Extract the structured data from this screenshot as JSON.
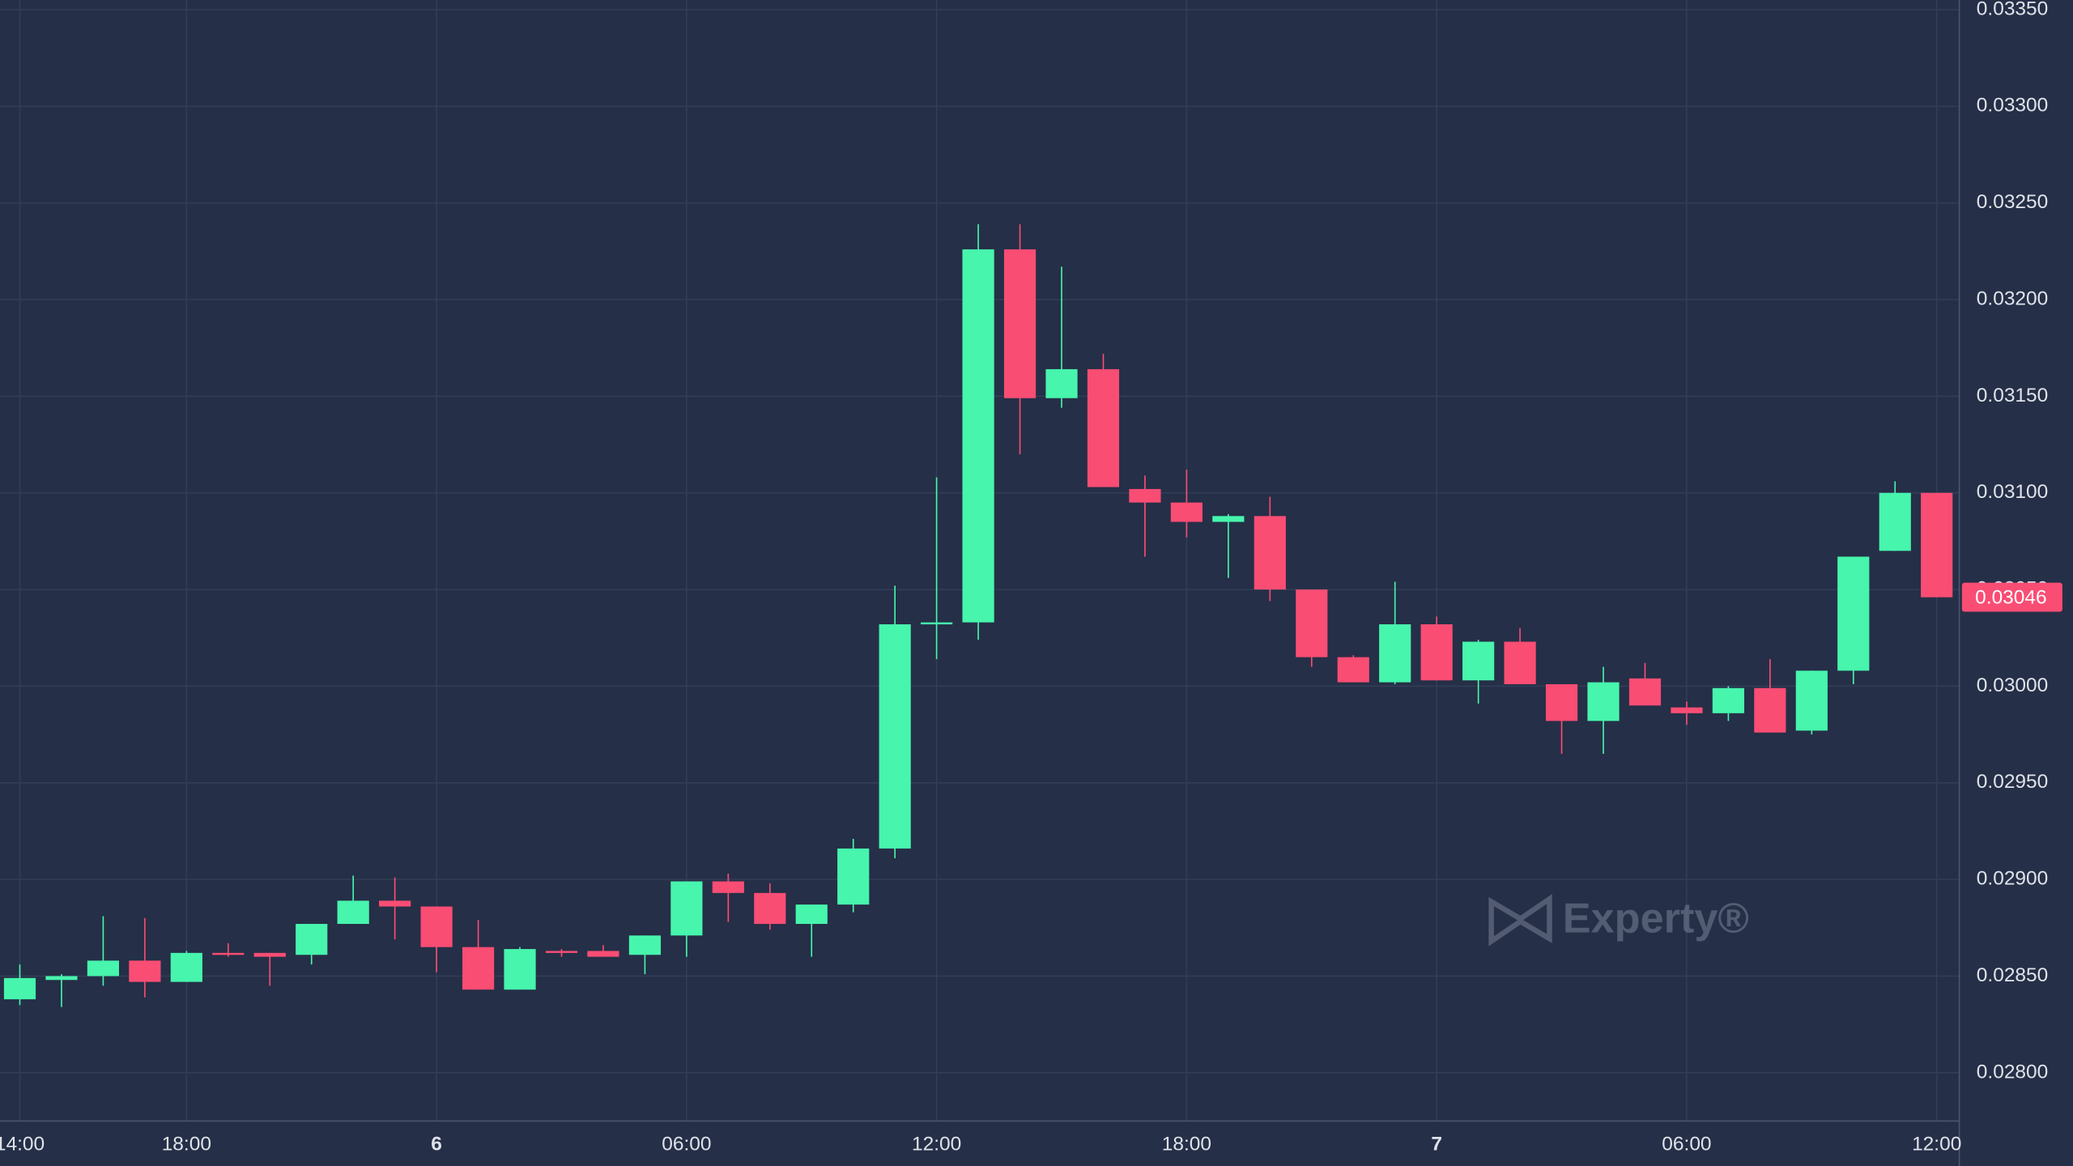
{
  "chart_data": {
    "type": "candlestick",
    "categories": [
      "14:00",
      null,
      null,
      null,
      "18:00",
      null,
      null,
      null,
      null,
      null,
      "6",
      null,
      null,
      null,
      null,
      null,
      "06:00",
      null,
      null,
      null,
      null,
      null,
      "12:00",
      null,
      null,
      null,
      null,
      null,
      "18:00",
      null,
      null,
      null,
      null,
      null,
      "7",
      null,
      null,
      null,
      null,
      null,
      "06:00",
      null,
      null,
      null,
      null,
      null,
      "12:00"
    ],
    "open": [
      0.02838,
      0.02848,
      0.0285,
      0.02858,
      0.02847,
      0.02862,
      0.02862,
      0.02861,
      0.02877,
      0.02889,
      0.02886,
      0.02865,
      0.02843,
      0.02863,
      0.02863,
      0.02861,
      0.02871,
      0.02899,
      0.02893,
      0.02877,
      0.02887,
      0.02916,
      0.03032,
      0.03033,
      0.03226,
      0.03149,
      0.03164,
      0.03102,
      0.03095,
      0.03085,
      0.03088,
      0.0305,
      0.03015,
      0.03002,
      0.03032,
      0.03003,
      0.03023,
      0.03001,
      0.02982,
      0.03004,
      0.02989,
      0.02986,
      0.02999,
      0.02977,
      0.03008,
      0.0307,
      0.031
    ],
    "high": [
      0.02856,
      0.02851,
      0.02881,
      0.0288,
      0.02863,
      0.02867,
      0.02862,
      0.02877,
      0.02902,
      0.02901,
      0.02886,
      0.02879,
      0.02865,
      0.02864,
      0.02866,
      0.02871,
      0.02899,
      0.02903,
      0.02898,
      0.02887,
      0.02921,
      0.03052,
      0.03108,
      0.03239,
      0.03239,
      0.03217,
      0.03172,
      0.03109,
      0.03112,
      0.03089,
      0.03098,
      0.0305,
      0.03016,
      0.03054,
      0.03036,
      0.03024,
      0.0303,
      0.03001,
      0.0301,
      0.03012,
      0.02992,
      0.03,
      0.03014,
      0.03008,
      0.03067,
      0.03106,
      0.031
    ],
    "low": [
      0.02835,
      0.02834,
      0.02845,
      0.02839,
      0.02847,
      0.0286,
      0.02845,
      0.02856,
      0.02877,
      0.02869,
      0.02852,
      0.02843,
      0.02843,
      0.0286,
      0.0286,
      0.02851,
      0.0286,
      0.02878,
      0.02874,
      0.0286,
      0.02883,
      0.02911,
      0.03014,
      0.03024,
      0.0312,
      0.03144,
      0.03103,
      0.03067,
      0.03077,
      0.03056,
      0.03044,
      0.0301,
      0.03002,
      0.03001,
      0.03003,
      0.02991,
      0.03001,
      0.02965,
      0.02965,
      0.0299,
      0.0298,
      0.02982,
      0.02976,
      0.02975,
      0.03001,
      0.0307,
      0.03046
    ],
    "close": [
      0.02849,
      0.0285,
      0.02858,
      0.02847,
      0.02862,
      0.02861,
      0.0286,
      0.02877,
      0.02889,
      0.02886,
      0.02865,
      0.02843,
      0.02864,
      0.02862,
      0.0286,
      0.02871,
      0.02899,
      0.02893,
      0.02877,
      0.02887,
      0.02916,
      0.03032,
      0.03033,
      0.03226,
      0.03149,
      0.03164,
      0.03103,
      0.03095,
      0.03085,
      0.03088,
      0.0305,
      0.03015,
      0.03002,
      0.03032,
      0.03003,
      0.03023,
      0.03001,
      0.02982,
      0.03002,
      0.0299,
      0.02986,
      0.02999,
      0.02976,
      0.03008,
      0.03067,
      0.031,
      0.03046
    ],
    "up_color": "#47f5ad",
    "down_color": "#f94d74",
    "ylim": [
      0.02775,
      0.03355
    ],
    "yticks": [
      {
        "value": 0.028,
        "label": "0.02800"
      },
      {
        "value": 0.0285,
        "label": "0.02850"
      },
      {
        "value": 0.029,
        "label": "0.02900"
      },
      {
        "value": 0.0295,
        "label": "0.02950"
      },
      {
        "value": 0.03,
        "label": "0.03000"
      },
      {
        "value": 0.0305,
        "label": "0.03050"
      },
      {
        "value": 0.031,
        "label": "0.03100"
      },
      {
        "value": 0.0315,
        "label": "0.03150"
      },
      {
        "value": 0.032,
        "label": "0.03200"
      },
      {
        "value": 0.0325,
        "label": "0.03250"
      },
      {
        "value": 0.033,
        "label": "0.03300"
      },
      {
        "value": 0.0335,
        "label": "0.03350"
      }
    ],
    "grid": true,
    "last_price": 0.03046,
    "watermark": "Experty®"
  }
}
